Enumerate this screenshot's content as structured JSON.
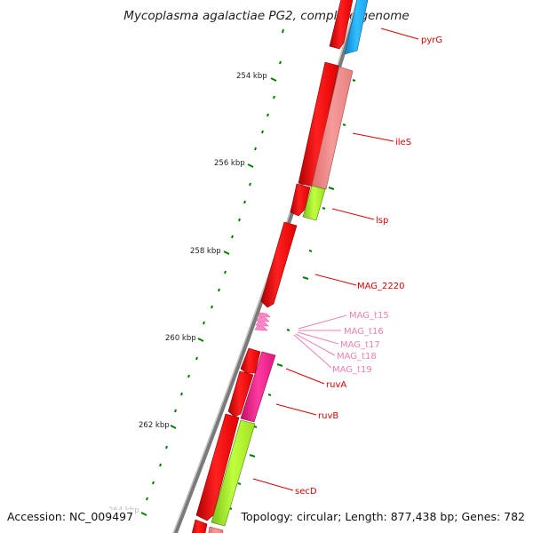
{
  "title": "Mycoplasma agalactiae PG2, complete genome",
  "footer": {
    "accession": "Accession: NC_009497",
    "summary": "Topology: circular; Length: 877,438 bp; Genes: 782"
  },
  "ruler_labels": [
    "254 kbp",
    "256 kbp",
    "258 kbp",
    "260 kbp",
    "262 kbp",
    "264 kbp"
  ],
  "gene_labels": [
    "pyrG",
    "ileS",
    "lsp",
    "MAG_2220",
    "MAG_t15",
    "MAG_t16",
    "MAG_t17",
    "MAG_t18",
    "MAG_t19",
    "ruvA",
    "ruvB",
    "secD"
  ],
  "colors": {
    "cds": "#ff0000",
    "gene_ileS": "#f08080",
    "gene_lsp": "#adff2f",
    "gene_ruvB": "#ff1493",
    "gene_secD": "#adff2f",
    "gene_pyrG": "#1e90ff",
    "trna": "#ff80c0",
    "label_cds": "#e00000",
    "label_trna": "#f080b0",
    "ticks": "#008000",
    "backbone": "#808080"
  }
}
